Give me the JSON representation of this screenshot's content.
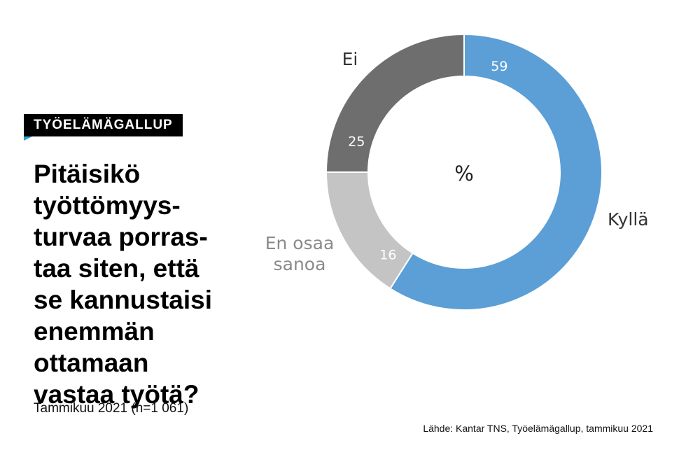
{
  "tag": "TYÖELÄMÄGALLUP",
  "question_lines": [
    "Pitäisikö",
    "työttömyys-",
    "turvaa porras-",
    "taa siten, että",
    "se kannustaisi",
    "enemmän",
    "ottamaan",
    "vastaa työtä?"
  ],
  "subtitle": "Tammikuu 2021 (n=1 061)",
  "source": "Lähde: Kantar TNS, Työelämägallup, tammikuu 2021",
  "chart_data": {
    "type": "pie",
    "donut": true,
    "center_label": "%",
    "slices": [
      {
        "label": "Kyllä",
        "value": 59,
        "color": "#5b9fd6",
        "label_color": "#333333"
      },
      {
        "label": "En osaa sanoa",
        "label_lines": [
          "En osaa",
          "sanoa"
        ],
        "value": 16,
        "color": "#c4c4c4",
        "label_color": "#8a8a8a"
      },
      {
        "label": "Ei",
        "value": 25,
        "color": "#6e6e6e",
        "label_color": "#333333"
      }
    ]
  }
}
